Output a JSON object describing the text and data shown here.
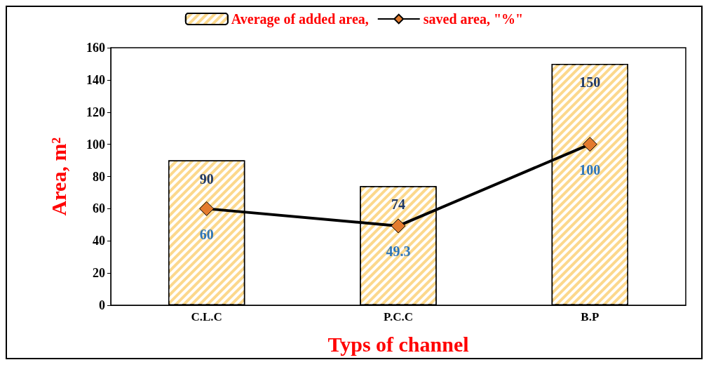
{
  "chart_data": {
    "type": "bar",
    "xlabel": "Typs of channel",
    "ylabel": "Area, m²",
    "categories": [
      "C.L.C",
      "P.C.C",
      "B.P"
    ],
    "series": [
      {
        "name": "Average of added area,",
        "color": "#fcd88c",
        "values": [
          90,
          74,
          150
        ]
      },
      {
        "name": "saved area, \"%\"",
        "type": "line",
        "color": "#e37b2e",
        "values": [
          60,
          49.3,
          100
        ]
      }
    ],
    "ylim": [
      0,
      160
    ],
    "yticks": [
      0,
      20,
      40,
      60,
      80,
      100,
      120,
      140,
      160
    ],
    "data_labels": true,
    "legend": "top",
    "marker": "diamond",
    "line_style": "solid",
    "grid": false
  }
}
